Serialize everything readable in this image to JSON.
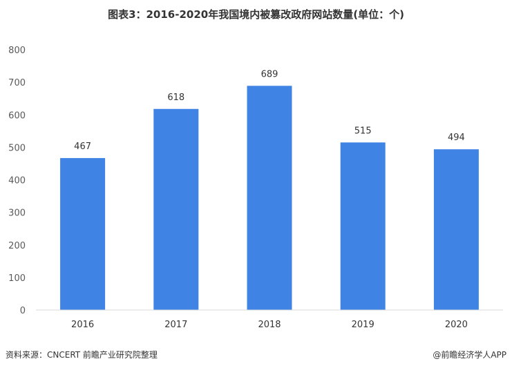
{
  "chart_data": {
    "type": "bar",
    "title": "图表3：2016-2020年我国境内被篡改政府网站数量(单位：个)",
    "categories": [
      "2016",
      "2017",
      "2018",
      "2019",
      "2020"
    ],
    "values": [
      467,
      618,
      689,
      515,
      494
    ],
    "ylim": [
      0,
      800
    ],
    "yticks": [
      0,
      100,
      200,
      300,
      400,
      500,
      600,
      700,
      800
    ],
    "grid": false,
    "bar_color": "#3f84e5"
  },
  "footer": {
    "source": "资料来源：CNCERT 前瞻产业研究院整理",
    "brand": "@前瞻经济学人APP"
  }
}
